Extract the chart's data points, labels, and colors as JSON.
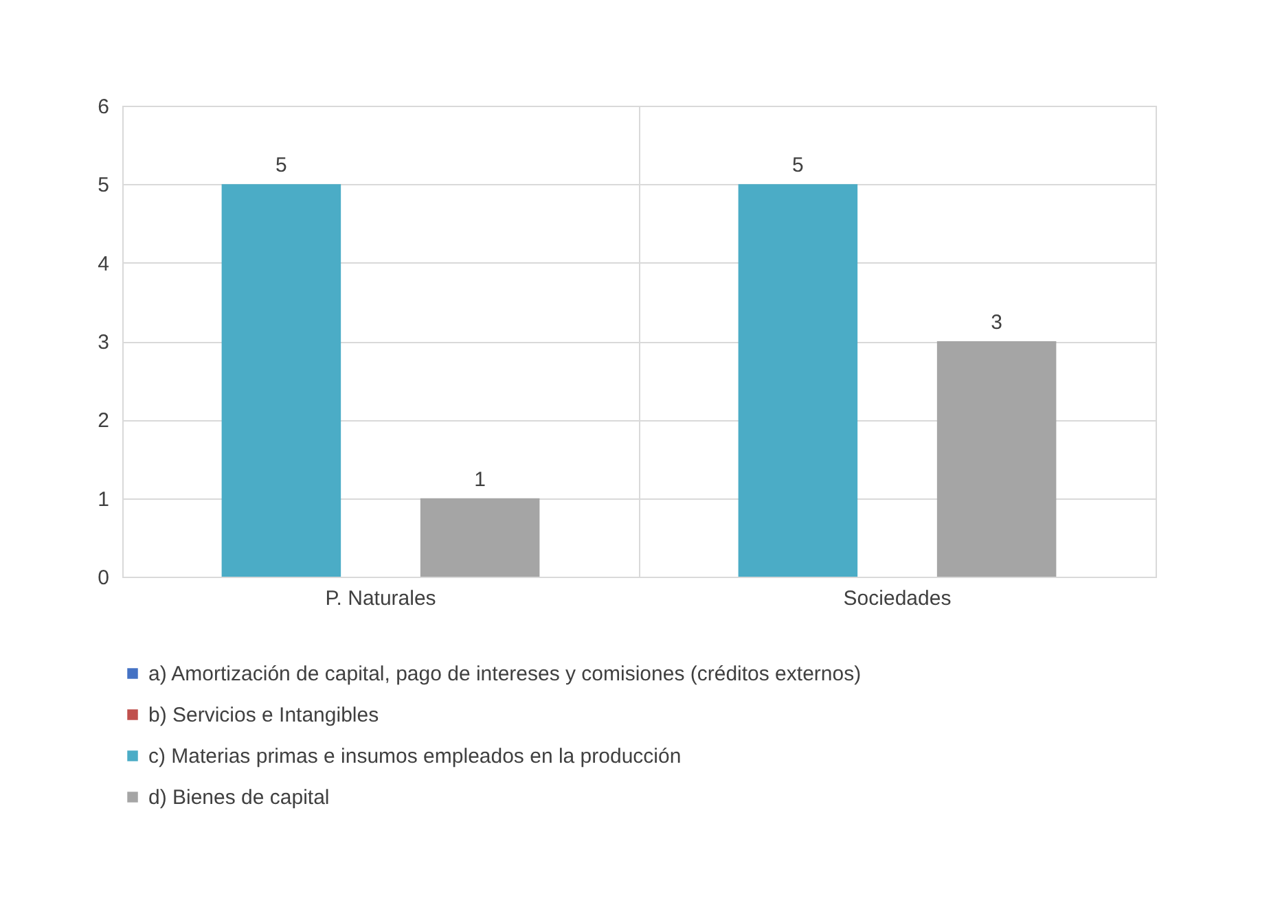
{
  "chart_data": {
    "type": "bar",
    "categories": [
      "P. Naturales",
      "Sociedades"
    ],
    "series": [
      {
        "name": "a) Amortización de capital, pago de intereses y comisiones (créditos externos)",
        "color": "#4472c4",
        "values": [
          null,
          null
        ]
      },
      {
        "name": "b) Servicios e Intangibles",
        "color": "#c0504d",
        "values": [
          null,
          null
        ]
      },
      {
        "name": "c) Materias primas e insumos empleados en la producción",
        "color": "#4bacc6",
        "values": [
          5,
          5
        ]
      },
      {
        "name": "d) Bienes de capital",
        "color": "#a5a5a5",
        "values": [
          1,
          3
        ]
      }
    ],
    "ylim": [
      0,
      6
    ],
    "yticks": [
      0,
      1,
      2,
      3,
      4,
      5,
      6
    ],
    "grid": true,
    "legend": "bottom",
    "data_labels": true
  }
}
